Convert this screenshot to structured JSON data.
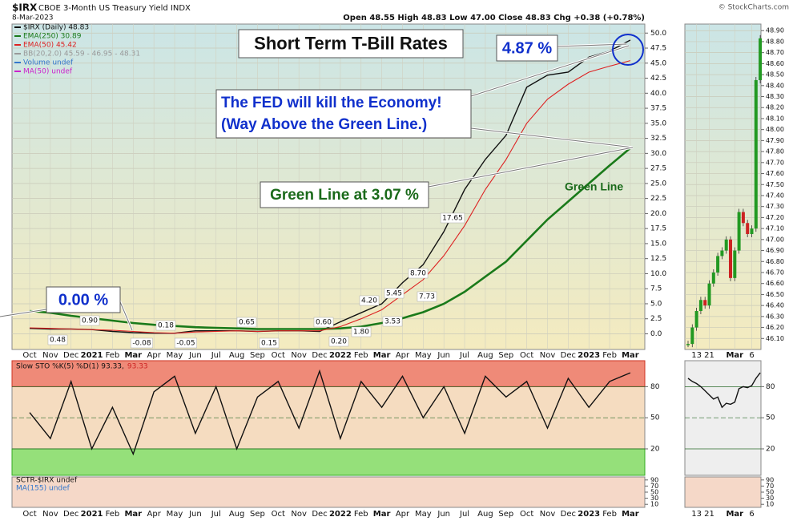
{
  "header": {
    "symbol": "$IRX",
    "name": "CBOE 3-Month US Treasury Yield INDX",
    "date": "8-Mar-2023",
    "quote": "Open 48.55  High 48.83  Low 47.00  Close 48.83  Chg +0.38 (+0.78%)",
    "source": "© StockCharts.com"
  },
  "chart_data": [
    {
      "type": "line",
      "categories": [
        "Oct",
        "Nov",
        "Dec",
        "2021",
        "Feb",
        "Mar",
        "Apr",
        "May",
        "Jun",
        "Jul",
        "Aug",
        "Sep",
        "Oct",
        "Nov",
        "Dec",
        "2022",
        "Feb",
        "Mar",
        "Apr",
        "May",
        "Jun",
        "Jul",
        "Aug",
        "Sep",
        "Oct",
        "Nov",
        "Dec",
        "2023",
        "Feb",
        "Mar"
      ],
      "series": [
        {
          "name": "$IRX (Daily) 48.83",
          "color": "#111111",
          "values": [
            0.9,
            0.8,
            0.8,
            0.7,
            0.4,
            0.2,
            0.1,
            0.1,
            0.5,
            0.5,
            0.5,
            0.4,
            0.5,
            0.5,
            0.4,
            2,
            3.5,
            5,
            8.5,
            11.5,
            17,
            24,
            29,
            33,
            41,
            43,
            43.5,
            46,
            47,
            48.83
          ]
        },
        {
          "name": "EMA(250) 30.89",
          "color": "#1a7a1a",
          "values": [
            3.8,
            3.5,
            3,
            2.6,
            2.2,
            1.8,
            1.5,
            1.3,
            1.1,
            1,
            0.9,
            0.8,
            0.8,
            0.8,
            0.8,
            0.9,
            1.2,
            1.8,
            2.6,
            3.6,
            5,
            7,
            9.5,
            12,
            15.5,
            19,
            22,
            25,
            28,
            30.89
          ]
        },
        {
          "name": "EMA(50) 45.42",
          "color": "#dd2222",
          "values": [
            1,
            0.9,
            0.8,
            0.7,
            0.6,
            0.4,
            0.2,
            0.1,
            0.3,
            0.4,
            0.5,
            0.4,
            0.5,
            0.5,
            0.5,
            1.2,
            2.5,
            4,
            6.5,
            9,
            13,
            18,
            24,
            29,
            35,
            39,
            41.5,
            43.5,
            44.5,
            45.42
          ]
        }
      ],
      "legend_notes": [
        {
          "text": "BB(20,2.0) 45.59 - 46.95 - 48.31",
          "color": "#999999"
        },
        {
          "text": "Volume undef",
          "color": "#3377cc"
        },
        {
          "text": "MA(50) undef",
          "color": "#cc22cc"
        }
      ],
      "ylim": [
        -2.6,
        51.5
      ],
      "yticks": [
        {
          "value": 0,
          "label": "0.0"
        },
        {
          "value": 2.5,
          "label": "2.5"
        },
        {
          "value": 5,
          "label": "5.0"
        },
        {
          "value": 7.5,
          "label": "7.5"
        },
        {
          "value": 10,
          "label": "10.0"
        },
        {
          "value": 12.5,
          "label": "12.5"
        },
        {
          "value": 15,
          "label": "15.0"
        },
        {
          "value": 17.5,
          "label": "17.5"
        },
        {
          "value": 20,
          "label": "20.0"
        },
        {
          "value": 22.5,
          "label": "22.5"
        },
        {
          "value": 25,
          "label": "25.0"
        },
        {
          "value": 27.5,
          "label": "27.5"
        },
        {
          "value": 30,
          "label": "30.0"
        },
        {
          "value": 32.5,
          "label": "32.5"
        },
        {
          "value": 35,
          "label": "35.0"
        },
        {
          "value": 37.5,
          "label": "37.5"
        },
        {
          "value": 40,
          "label": "40.0"
        },
        {
          "value": 42.5,
          "label": "42.5"
        },
        {
          "value": 45,
          "label": "45.0"
        },
        {
          "value": 47.5,
          "label": "47.5"
        },
        {
          "value": 50,
          "label": "50.0"
        }
      ],
      "grid": true,
      "annotations": [
        "Short Term T-Bill Rates",
        "4.87 %",
        "The FED will kill the Economy!",
        "(Way Above the Green Line.)",
        "Green Line at 3.07 %",
        "Green Line",
        "0.00 %",
        "0.90",
        "0.48",
        "-0.08",
        "0.18",
        "-0.05",
        "0.65",
        "0.15",
        "0.60",
        "0.20",
        "1.80",
        "4.20",
        "3.53",
        "5.45",
        "8.70",
        "7.73",
        "17.65"
      ]
    },
    {
      "type": "line",
      "title": "Slow STO %K(5) %D(1) 93.33,",
      "title_extra": "93.33",
      "categories": [
        "Oct",
        "Nov",
        "Dec",
        "2021",
        "Feb",
        "Mar",
        "Apr",
        "May",
        "Jun",
        "Jul",
        "Aug",
        "Sep",
        "Oct",
        "Nov",
        "Dec",
        "2022",
        "Feb",
        "Mar",
        "Apr",
        "May",
        "Jun",
        "Jul",
        "Aug",
        "Sep",
        "Oct",
        "Nov",
        "Dec",
        "2023",
        "Feb",
        "Mar"
      ],
      "series": [
        {
          "name": "%K",
          "color": "#111111",
          "values": [
            55,
            30,
            85,
            20,
            60,
            15,
            75,
            90,
            35,
            80,
            20,
            70,
            85,
            40,
            95,
            30,
            85,
            60,
            90,
            50,
            80,
            35,
            90,
            70,
            85,
            40,
            88,
            60,
            85,
            93.33
          ]
        }
      ],
      "ylim": [
        -5.5,
        105
      ],
      "yticks": [
        20,
        50,
        80
      ],
      "grid": true
    },
    {
      "type": "panel",
      "title": "SCTR-$IRX undef",
      "subtitle": "MA(155) undef",
      "ylim": [
        0,
        100
      ],
      "yticks": [
        10,
        30,
        50,
        70,
        90
      ]
    },
    {
      "type": "candlestick",
      "categories": [
        null,
        null,
        "13",
        null,
        null,
        "21",
        null,
        null,
        null,
        null,
        null,
        "Mar",
        null,
        null,
        null,
        "6",
        null,
        null
      ],
      "values": [
        46.05,
        46.2,
        46.35,
        46.45,
        46.4,
        46.6,
        46.7,
        46.85,
        46.9,
        47,
        46.65,
        46.9,
        47.25,
        47.15,
        47.05,
        47.1,
        48.45,
        48.83
      ],
      "colors": {
        "up": "#229922",
        "down": "#cc2222"
      },
      "ylim": [
        46,
        48.96
      ],
      "yticks": [
        {
          "value": 46.1,
          "label": "46.10"
        },
        {
          "value": 46.2,
          "label": "46.20"
        },
        {
          "value": 46.3,
          "label": "46.30"
        },
        {
          "value": 46.4,
          "label": "46.40"
        },
        {
          "value": 46.5,
          "label": "46.50"
        },
        {
          "value": 46.6,
          "label": "46.60"
        },
        {
          "value": 46.7,
          "label": "46.70"
        },
        {
          "value": 46.8,
          "label": "46.80"
        },
        {
          "value": 46.9,
          "label": "46.90"
        },
        {
          "value": 47,
          "label": "47.00"
        },
        {
          "value": 47.1,
          "label": "47.10"
        },
        {
          "value": 47.2,
          "label": "47.20"
        },
        {
          "value": 47.3,
          "label": "47.30"
        },
        {
          "value": 47.4,
          "label": "47.40"
        },
        {
          "value": 47.5,
          "label": "47.50"
        },
        {
          "value": 47.6,
          "label": "47.60"
        },
        {
          "value": 47.7,
          "label": "47.70"
        },
        {
          "value": 47.8,
          "label": "47.80"
        },
        {
          "value": 47.9,
          "label": "47.90"
        },
        {
          "value": 48,
          "label": "48.00"
        },
        {
          "value": 48.1,
          "label": "48.10"
        },
        {
          "value": 48.2,
          "label": "48.20"
        },
        {
          "value": 48.3,
          "label": "48.30"
        },
        {
          "value": 48.4,
          "label": "48.40"
        },
        {
          "value": 48.5,
          "label": "48.50"
        },
        {
          "value": 48.6,
          "label": "48.60"
        },
        {
          "value": 48.7,
          "label": "48.70"
        },
        {
          "value": 48.8,
          "label": "48.80"
        },
        {
          "value": 48.9,
          "label": "48.90"
        }
      ],
      "grid": true
    },
    {
      "type": "line",
      "categories": [
        null,
        null,
        "13",
        null,
        null,
        "21",
        null,
        null,
        null,
        null,
        null,
        "Mar",
        null,
        null,
        null,
        "6",
        null,
        null
      ],
      "series": [
        {
          "name": "%K",
          "color": "#111111",
          "values": [
            88,
            85,
            83,
            80,
            76,
            72,
            68,
            70,
            60,
            64,
            63,
            65,
            78,
            80,
            79,
            81,
            88,
            93.33
          ]
        }
      ],
      "ylim": [
        -5.5,
        105
      ],
      "yticks": [
        20,
        50,
        80
      ],
      "grid": true
    },
    {
      "type": "panel",
      "ylim": [
        0,
        100
      ],
      "yticks": [
        10,
        30,
        50,
        70,
        90
      ]
    }
  ]
}
